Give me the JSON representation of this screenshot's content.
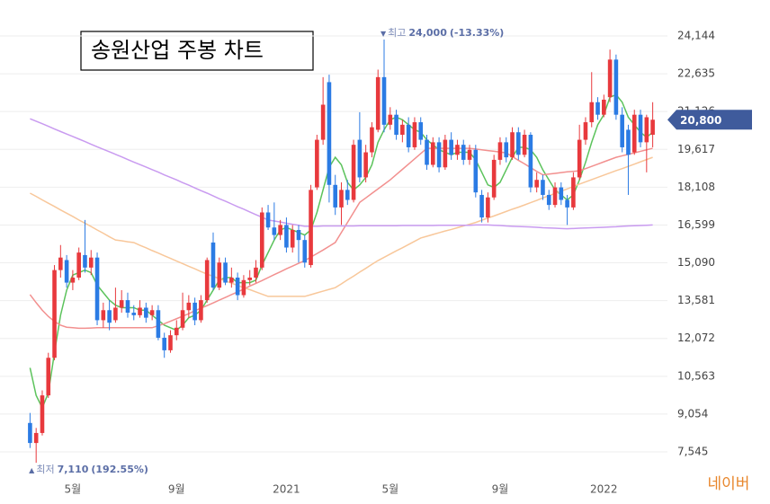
{
  "chart_data": {
    "type": "candlestick",
    "title": "송원산업 주봉 차트",
    "source": "네이버",
    "categories": [
      null,
      null,
      null,
      null,
      null,
      null,
      null,
      "5월",
      null,
      null,
      null,
      null,
      null,
      null,
      null,
      null,
      null,
      null,
      null,
      null,
      null,
      null,
      null,
      null,
      "9월",
      null,
      null,
      null,
      null,
      null,
      null,
      null,
      null,
      null,
      null,
      null,
      null,
      null,
      null,
      null,
      null,
      null,
      "2021",
      null,
      null,
      null,
      null,
      null,
      null,
      null,
      null,
      null,
      null,
      null,
      null,
      null,
      null,
      null,
      null,
      "5월",
      null,
      null,
      null,
      null,
      null,
      null,
      null,
      null,
      null,
      null,
      null,
      null,
      null,
      null,
      null,
      null,
      null,
      "9월",
      null,
      null,
      null,
      null,
      null,
      null,
      null,
      null,
      null,
      null,
      null,
      null,
      null,
      null,
      null,
      null,
      "2022",
      null,
      null,
      null,
      null,
      null,
      null,
      null,
      null
    ],
    "open": [
      8700,
      7900,
      8300,
      9800,
      11300,
      14800,
      15200,
      14300,
      14500,
      15400,
      14900,
      15300,
      12800,
      13200,
      12800,
      13300,
      13600,
      13100,
      13000,
      13300,
      13000,
      13200,
      12100,
      11600,
      12200,
      12500,
      13200,
      13500,
      12800,
      13600,
      15900,
      14100,
      15100,
      14300,
      14500,
      13800,
      14400,
      14500,
      14900,
      17100,
      16500,
      16200,
      16600,
      15700,
      16400,
      16000,
      15000,
      18100,
      20000,
      22300,
      18200,
      17300,
      18000,
      17600,
      20000,
      18500,
      19500,
      20400,
      22500,
      20600,
      21000,
      20200,
      20600,
      19700,
      20700,
      20000,
      19000,
      19900,
      18900,
      20000,
      19400,
      19800,
      19200,
      19600,
      17800,
      16900,
      17700,
      19200,
      19900,
      19300,
      20300,
      19400,
      20200,
      18100,
      18400,
      17800,
      17400,
      18100,
      17600,
      17300,
      18500,
      20000,
      20700,
      21500,
      21000,
      21700,
      23200,
      21000,
      20400,
      19500,
      21000,
      19900,
      20200
    ],
    "high": [
      9100,
      8500,
      10000,
      11500,
      15000,
      15800,
      15400,
      14800,
      15700,
      16800,
      15600,
      15500,
      13500,
      13600,
      14100,
      14000,
      13900,
      13400,
      13600,
      13500,
      13400,
      13400,
      12300,
      12400,
      12800,
      13900,
      13800,
      13700,
      13800,
      15300,
      16300,
      15300,
      15300,
      14900,
      14700,
      14600,
      14800,
      15200,
      17300,
      17400,
      17500,
      16800,
      16900,
      16600,
      16600,
      16200,
      18200,
      20200,
      22500,
      22600,
      18600,
      18300,
      18400,
      20000,
      21100,
      19800,
      20700,
      22800,
      24000,
      21300,
      21200,
      20800,
      20900,
      20900,
      20900,
      20200,
      20100,
      20100,
      20200,
      20300,
      20000,
      20000,
      19800,
      19800,
      18000,
      17900,
      19400,
      20100,
      20100,
      20500,
      20500,
      20400,
      20300,
      18700,
      18600,
      18000,
      18300,
      18300,
      17800,
      18700,
      20600,
      20900,
      22700,
      21700,
      21800,
      23600,
      23400,
      21300,
      20600,
      21200,
      21200,
      21000,
      21500
    ],
    "low": [
      7700,
      7110,
      8200,
      9700,
      11200,
      14500,
      14100,
      14000,
      14400,
      14700,
      14600,
      12600,
      12500,
      12400,
      12700,
      13100,
      12900,
      12800,
      12900,
      12700,
      12800,
      12000,
      11300,
      11500,
      12000,
      12400,
      12900,
      12600,
      12700,
      13500,
      14000,
      14000,
      14200,
      14100,
      13600,
      13700,
      14200,
      14300,
      14800,
      16400,
      16000,
      16000,
      15500,
      15500,
      15100,
      14900,
      14900,
      18000,
      19800,
      17500,
      17000,
      16600,
      17400,
      17500,
      18300,
      18300,
      19300,
      20300,
      20300,
      20400,
      20000,
      19900,
      19500,
      19600,
      19800,
      18800,
      18900,
      18700,
      18800,
      19200,
      19200,
      19000,
      19000,
      17700,
      16700,
      16700,
      17600,
      19000,
      19100,
      19200,
      19200,
      19300,
      17900,
      17900,
      17600,
      17200,
      17300,
      17400,
      16600,
      17200,
      18400,
      19800,
      20500,
      20800,
      20900,
      21500,
      20800,
      19500,
      17800,
      19400,
      19700,
      18700,
      19700
    ],
    "close": [
      7900,
      8300,
      9800,
      11300,
      14800,
      15300,
      14300,
      14500,
      15500,
      14900,
      15300,
      12800,
      13200,
      12700,
      13300,
      13600,
      13100,
      13000,
      13300,
      12900,
      13200,
      12100,
      11600,
      12200,
      12500,
      13200,
      13500,
      12800,
      13600,
      15200,
      14100,
      15100,
      14300,
      14500,
      13800,
      14400,
      14500,
      14900,
      17100,
      16500,
      16200,
      16600,
      15700,
      16400,
      16000,
      15100,
      18000,
      20000,
      21400,
      18200,
      17300,
      18000,
      17600,
      19800,
      18500,
      19500,
      20500,
      22500,
      20600,
      21000,
      20200,
      20600,
      19700,
      20700,
      20000,
      19000,
      19900,
      18900,
      20000,
      19400,
      19800,
      19200,
      19600,
      17900,
      16900,
      17700,
      19200,
      19900,
      19300,
      20300,
      19400,
      20200,
      18100,
      18400,
      17800,
      17400,
      18100,
      17600,
      17300,
      18500,
      20000,
      20700,
      21500,
      21000,
      21600,
      23200,
      21000,
      19700,
      19400,
      21000,
      19900,
      20900,
      20800
    ],
    "up_color": "#e8393d",
    "down_color": "#2b7be4",
    "series": [
      {
        "color": "#5cc35c",
        "values": [
          10900,
          9800,
          9300,
          9900,
          11500,
          13000,
          14000,
          14600,
          14700,
          14800,
          14700,
          14200,
          13900,
          13600,
          13400,
          13300,
          13300,
          13300,
          13200,
          13200,
          13000,
          12800,
          12600,
          12500,
          12400,
          12600,
          12900,
          13000,
          13200,
          13600,
          14000,
          14400,
          14500,
          14500,
          14300,
          14300,
          14300,
          14400,
          15000,
          15500,
          16000,
          16400,
          16500,
          16400,
          16300,
          16200,
          16400,
          17100,
          18000,
          18900,
          19300,
          19000,
          18300,
          18000,
          18200,
          18500,
          19000,
          19900,
          20400,
          20800,
          20900,
          20800,
          20600,
          20400,
          20300,
          20000,
          19800,
          19600,
          19500,
          19400,
          19500,
          19500,
          19500,
          19200,
          18700,
          18200,
          18100,
          18300,
          18800,
          19300,
          19700,
          19700,
          19600,
          19300,
          18800,
          18400,
          18000,
          17800,
          17600,
          17800,
          18400,
          19100,
          19900,
          20600,
          21000,
          21700,
          21800,
          21500,
          20900,
          20600,
          20300,
          20100,
          20300
        ]
      },
      {
        "color": "#f2908f",
        "values": [
          13820,
          13500,
          13200,
          12950,
          12750,
          12600,
          12520,
          12500,
          12480,
          12480,
          12490,
          12500,
          12500,
          12500,
          12500,
          12500,
          12500,
          12500,
          12500,
          12500,
          12500,
          12580,
          12660,
          12760,
          12860,
          12960,
          13060,
          13180,
          13280,
          13380,
          13490,
          13600,
          13710,
          13820,
          13930,
          14040,
          14160,
          14270,
          14380,
          14500,
          14620,
          14730,
          14850,
          14960,
          15070,
          15180,
          15320,
          15460,
          15600,
          15750,
          15900,
          16300,
          16700,
          17100,
          17500,
          17680,
          17860,
          18040,
          18220,
          18400,
          18610,
          18820,
          19030,
          19240,
          19450,
          19660,
          19660,
          19660,
          19660,
          19660,
          19660,
          19660,
          19660,
          19630,
          19600,
          19570,
          19540,
          19510,
          19480,
          19330,
          19180,
          19040,
          18890,
          18740,
          18600,
          18630,
          18660,
          18690,
          18720,
          18740,
          18760,
          18850,
          18940,
          19030,
          19120,
          19210,
          19300,
          19360,
          19420,
          19480,
          19540,
          19600,
          19660
        ]
      },
      {
        "color": "#f8c79a",
        "values": [
          17870,
          17740,
          17600,
          17470,
          17340,
          17200,
          17070,
          16940,
          16800,
          16670,
          16540,
          16400,
          16270,
          16130,
          16000,
          15970,
          15930,
          15900,
          15790,
          15690,
          15580,
          15480,
          15370,
          15270,
          15160,
          15060,
          14950,
          14850,
          14740,
          14640,
          14550,
          14460,
          14370,
          14280,
          14190,
          14100,
          14020,
          13930,
          13840,
          13750,
          13750,
          13750,
          13750,
          13750,
          13750,
          13750,
          13820,
          13890,
          13960,
          14030,
          14100,
          14250,
          14410,
          14560,
          14720,
          14870,
          15030,
          15180,
          15310,
          15440,
          15570,
          15690,
          15820,
          15950,
          16080,
          16150,
          16220,
          16290,
          16360,
          16420,
          16490,
          16560,
          16630,
          16700,
          16790,
          16880,
          16960,
          17050,
          17140,
          17230,
          17310,
          17400,
          17490,
          17580,
          17680,
          17770,
          17860,
          17950,
          18040,
          18140,
          18230,
          18320,
          18410,
          18500,
          18590,
          18680,
          18770,
          18850,
          18940,
          19030,
          19120,
          19210,
          19300
        ]
      },
      {
        "color": "#c99bf0",
        "values": [
          20840,
          20740,
          20640,
          20540,
          20430,
          20330,
          20230,
          20130,
          20030,
          19930,
          19820,
          19720,
          19620,
          19520,
          19420,
          19320,
          19210,
          19110,
          19010,
          18910,
          18810,
          18710,
          18600,
          18500,
          18400,
          18290,
          18190,
          18080,
          17970,
          17870,
          17760,
          17650,
          17550,
          17440,
          17330,
          17230,
          17120,
          17010,
          16910,
          16800,
          16760,
          16720,
          16670,
          16630,
          16590,
          16550,
          16550,
          16550,
          16560,
          16560,
          16560,
          16560,
          16560,
          16560,
          16570,
          16570,
          16570,
          16570,
          16570,
          16570,
          16570,
          16580,
          16580,
          16580,
          16580,
          16580,
          16580,
          16590,
          16590,
          16590,
          16590,
          16590,
          16590,
          16600,
          16600,
          16600,
          16590,
          16580,
          16560,
          16550,
          16540,
          16530,
          16520,
          16510,
          16490,
          16480,
          16470,
          16460,
          16450,
          16460,
          16470,
          16480,
          16490,
          16500,
          16510,
          16520,
          16530,
          16550,
          16560,
          16570,
          16580,
          16590,
          16600
        ]
      }
    ],
    "ylim": [
      6577,
      24861
    ],
    "yticks": [
      {
        "value": 24144,
        "label": "24,144"
      },
      {
        "value": 22635,
        "label": "22,635"
      },
      {
        "value": 21126,
        "label": "21,126"
      },
      {
        "value": 19617,
        "label": "19,617"
      },
      {
        "value": 18108,
        "label": "18,108"
      },
      {
        "value": 16599,
        "label": "16,599"
      },
      {
        "value": 15090,
        "label": "15,090"
      },
      {
        "value": 13581,
        "label": "13,581"
      },
      {
        "value": 12072,
        "label": "12,072"
      },
      {
        "value": 10563,
        "label": "10,563"
      },
      {
        "value": 9054,
        "label": "9,054"
      },
      {
        "value": 7545,
        "label": "7,545"
      }
    ],
    "grid": true,
    "last_price": {
      "value": 20800,
      "label": "20,800"
    },
    "annotations": [
      {
        "marker": "▼",
        "label": "최고",
        "value": 24000,
        "value_label": "24,000",
        "change": "(-13.33%)"
      },
      {
        "marker": "▲",
        "label": "최저",
        "value": 7110,
        "value_label": "7,110",
        "change": "(192.55%)"
      }
    ]
  }
}
